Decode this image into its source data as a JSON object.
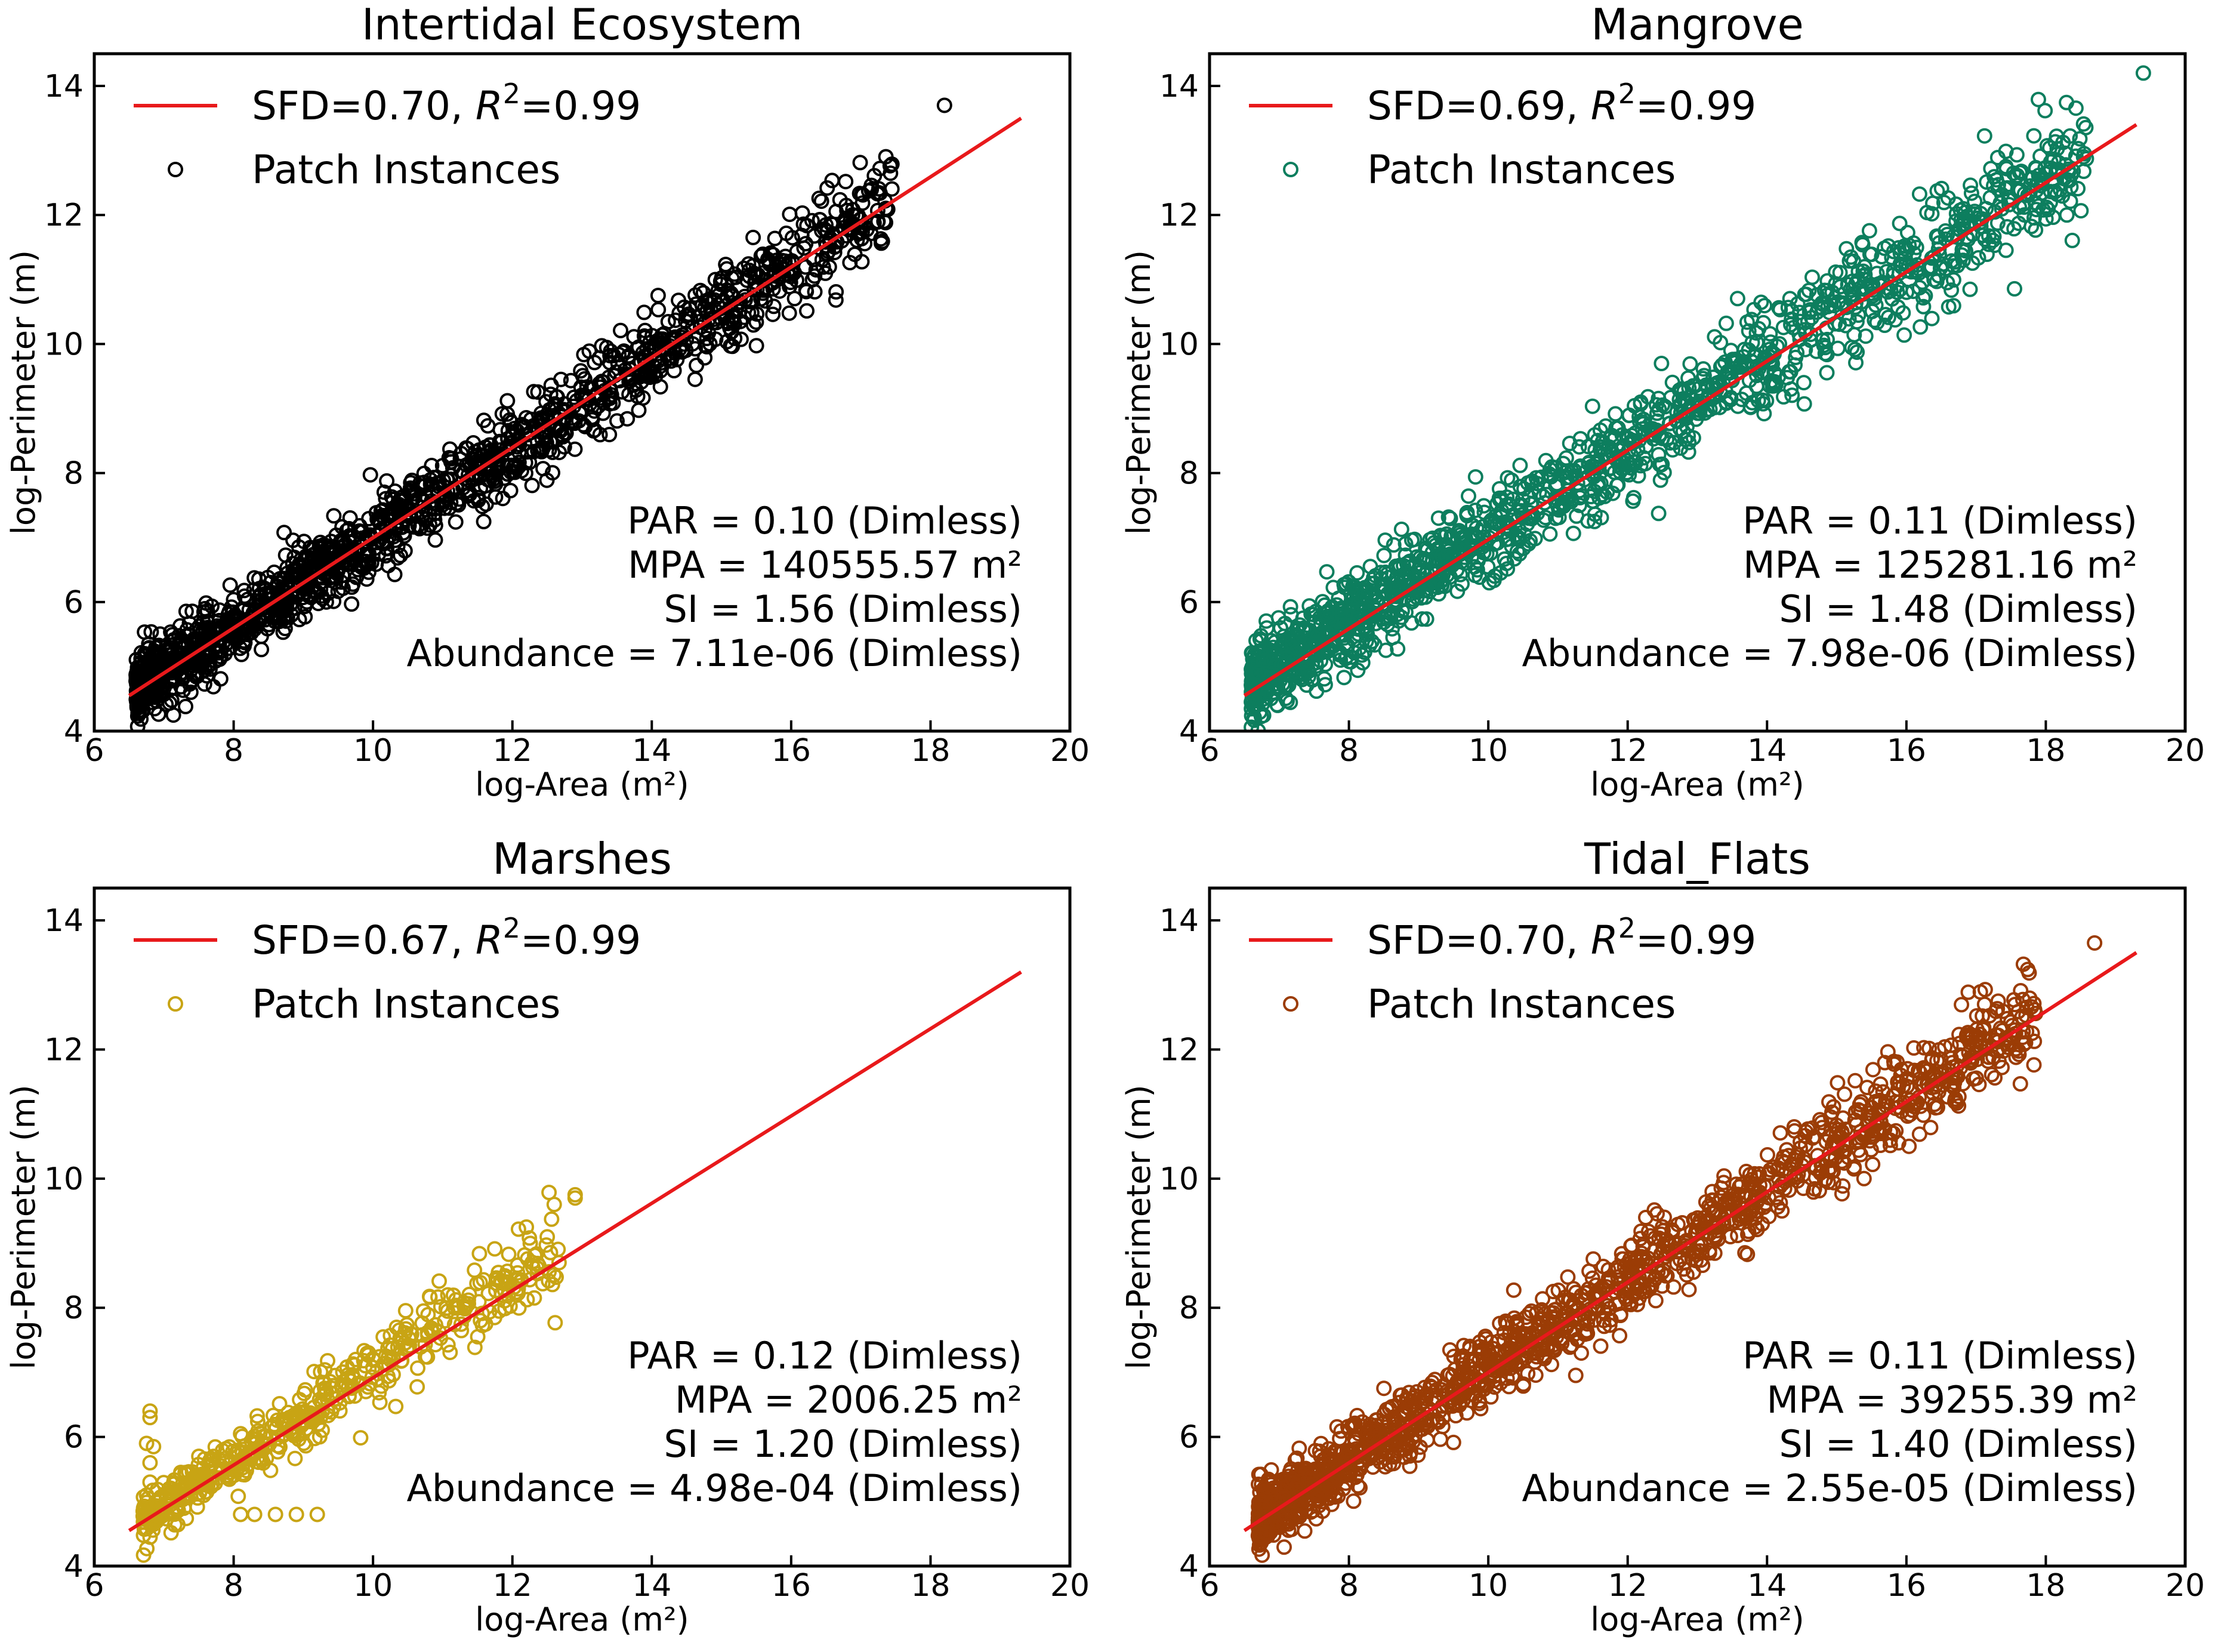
{
  "chart_data": [
    {
      "type": "scatter",
      "title": "Intertidal Ecosystem",
      "xlabel": "log-Area (m²)",
      "ylabel": "log-Perimeter (m)",
      "xlim": [
        6,
        20
      ],
      "ylim": [
        4,
        14.5
      ],
      "xticks": [
        6,
        8,
        10,
        12,
        14,
        16,
        18,
        20
      ],
      "yticks": [
        4,
        6,
        8,
        10,
        12,
        14
      ],
      "grid": false,
      "legend": "top-left",
      "legend_entries": [
        "SFD=0.70, R²=0.99",
        "Patch Instances"
      ],
      "point_color": "#000000",
      "fit_color": "#e8191b",
      "fit_line": {
        "x": [
          6.5,
          19.3
        ],
        "y": [
          4.55,
          13.5
        ]
      },
      "point_cloud": {
        "x_range": [
          6.6,
          18.3
        ],
        "slope": 0.7,
        "intercept": 0.02,
        "spread": 0.25,
        "max_point": [
          18.2,
          13.7
        ]
      },
      "annotations": [
        "PAR = 0.10 (Dimless)",
        "MPA = 140555.57 m²",
        "SI = 1.56 (Dimless)",
        "Abundance = 7.11e-06 (Dimless)"
      ]
    },
    {
      "type": "scatter",
      "title": "Mangrove",
      "xlabel": "log-Area (m²)",
      "ylabel": "log-Perimeter (m)",
      "xlim": [
        6,
        20
      ],
      "ylim": [
        4,
        14.5
      ],
      "xticks": [
        6,
        8,
        10,
        12,
        14,
        16,
        18,
        20
      ],
      "yticks": [
        4,
        6,
        8,
        10,
        12,
        14
      ],
      "grid": false,
      "legend": "top-left",
      "legend_entries": [
        "SFD=0.69, R²=0.99",
        "Patch Instances"
      ],
      "point_color": "#0d7e5e",
      "fit_color": "#e8191b",
      "fit_line": {
        "x": [
          6.5,
          19.3
        ],
        "y": [
          4.55,
          13.4
        ]
      },
      "point_cloud": {
        "x_range": [
          6.6,
          19.5
        ],
        "slope": 0.69,
        "intercept": 0.15,
        "spread": 0.3,
        "max_point": [
          19.4,
          14.2
        ]
      },
      "annotations": [
        "PAR = 0.11 (Dimless)",
        "MPA = 125281.16 m²",
        "SI = 1.48 (Dimless)",
        "Abundance = 7.98e-06 (Dimless)"
      ]
    },
    {
      "type": "scatter",
      "title": "Marshes",
      "xlabel": "log-Area (m²)",
      "ylabel": "log-Perimeter (m)",
      "xlim": [
        6,
        20
      ],
      "ylim": [
        4,
        14.5
      ],
      "xticks": [
        6,
        8,
        10,
        12,
        14,
        16,
        18,
        20
      ],
      "yticks": [
        4,
        6,
        8,
        10,
        12,
        14
      ],
      "grid": false,
      "legend": "top-left",
      "legend_entries": [
        "SFD=0.67, R²=0.99",
        "Patch Instances"
      ],
      "point_color": "#c8a414",
      "fit_color": "#e8191b",
      "fit_line": {
        "x": [
          6.5,
          19.3
        ],
        "y": [
          4.55,
          13.2
        ]
      },
      "point_cloud": {
        "x_range": [
          6.7,
          13.0
        ],
        "slope": 0.7,
        "intercept": 0.05,
        "spread": 0.2,
        "max_point": [
          12.9,
          9.7
        ]
      },
      "annotations": [
        "PAR = 0.12 (Dimless)",
        "MPA = 2006.25 m²",
        "SI = 1.20 (Dimless)",
        "Abundance = 4.98e-04 (Dimless)"
      ]
    },
    {
      "type": "scatter",
      "title": "Tidal_Flats",
      "xlabel": "log-Area (m²)",
      "ylabel": "log-Perimeter (m)",
      "xlim": [
        6,
        20
      ],
      "ylim": [
        4,
        14.5
      ],
      "xticks": [
        6,
        8,
        10,
        12,
        14,
        16,
        18,
        20
      ],
      "yticks": [
        4,
        6,
        8,
        10,
        12,
        14
      ],
      "grid": false,
      "legend": "top-left",
      "legend_entries": [
        "SFD=0.70, R²=0.99",
        "Patch Instances"
      ],
      "point_color": "#9b3c05",
      "fit_color": "#e8191b",
      "fit_line": {
        "x": [
          6.5,
          19.3
        ],
        "y": [
          4.55,
          13.5
        ]
      },
      "point_cloud": {
        "x_range": [
          6.7,
          18.7
        ],
        "slope": 0.7,
        "intercept": 0.05,
        "spread": 0.25,
        "max_point": [
          18.7,
          13.65
        ]
      },
      "annotations": [
        "PAR = 0.11 (Dimless)",
        "MPA = 39255.39 m²",
        "SI = 1.40 (Dimless)",
        "Abundance = 2.55e-05 (Dimless)"
      ]
    }
  ]
}
